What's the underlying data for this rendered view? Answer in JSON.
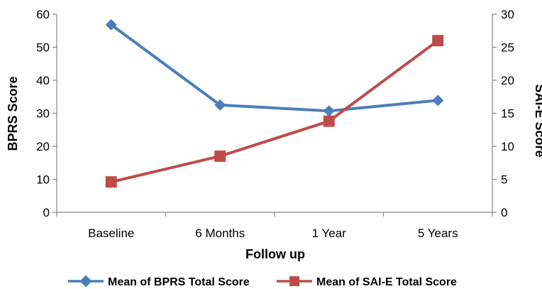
{
  "chart_data": {
    "type": "line",
    "categories": [
      "Baseline",
      "6 Months",
      "1 Year",
      "5 Years"
    ],
    "xlabel": "Follow up",
    "ylabel_left": "BPRS Score",
    "ylabel_right": "SAI-E Score",
    "ylim_left": [
      0,
      60
    ],
    "ylim_right": [
      0,
      30
    ],
    "yticks_left": [
      0,
      10,
      20,
      30,
      40,
      50,
      60
    ],
    "yticks_right": [
      0,
      5,
      10,
      15,
      20,
      25,
      30
    ],
    "grid": false,
    "legend_position": "bottom",
    "series": [
      {
        "name": "Mean of BPRS Total Score",
        "axis": "left",
        "marker": "diamond",
        "color": "#4a7ebb",
        "values": [
          56.8,
          32.5,
          30.7,
          33.9
        ]
      },
      {
        "name": "Mean of SAI-E Total Score",
        "axis": "right",
        "marker": "square",
        "color": "#be4b48",
        "values": [
          4.6,
          8.5,
          13.8,
          26.0
        ]
      }
    ]
  }
}
